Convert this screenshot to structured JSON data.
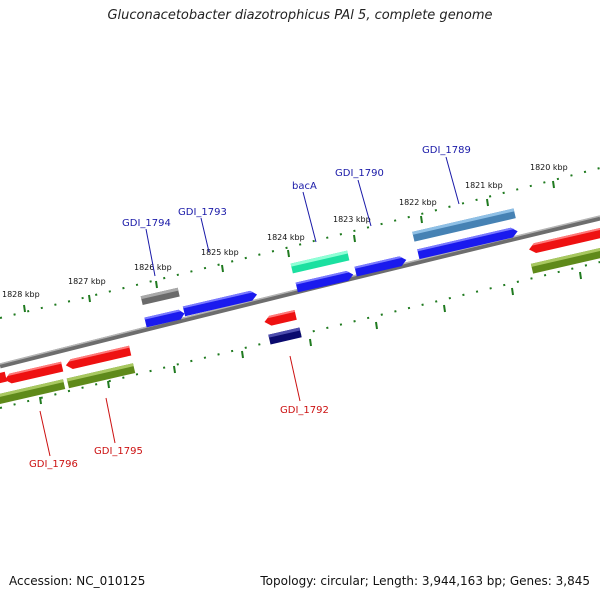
{
  "title": "Gluconacetobacter diazotrophicus PAl 5, complete genome",
  "footer": {
    "accession": "Accession: NC_010125",
    "info": "Topology: circular; Length: 3,944,163 bp; Genes: 3,845"
  },
  "colors": {
    "label_blue": "#1a1aa8",
    "label_red": "#cc1111",
    "tick_green": "#1f7a1f",
    "backbone": "#8a8a8a"
  },
  "kbp_labels": [
    "1828 kbp",
    "1827 kbp",
    "1826 kbp",
    "1825 kbp",
    "1824 kbp",
    "1823 kbp",
    "1822 kbp",
    "1821 kbp",
    "1820 kbp"
  ],
  "gene_labels": [
    "GDI_1794",
    "GDI_1793",
    "bacA",
    "GDI_1790",
    "GDI_1789",
    "GDI_1792",
    "GDI_1796",
    "GDI_1795"
  ]
}
